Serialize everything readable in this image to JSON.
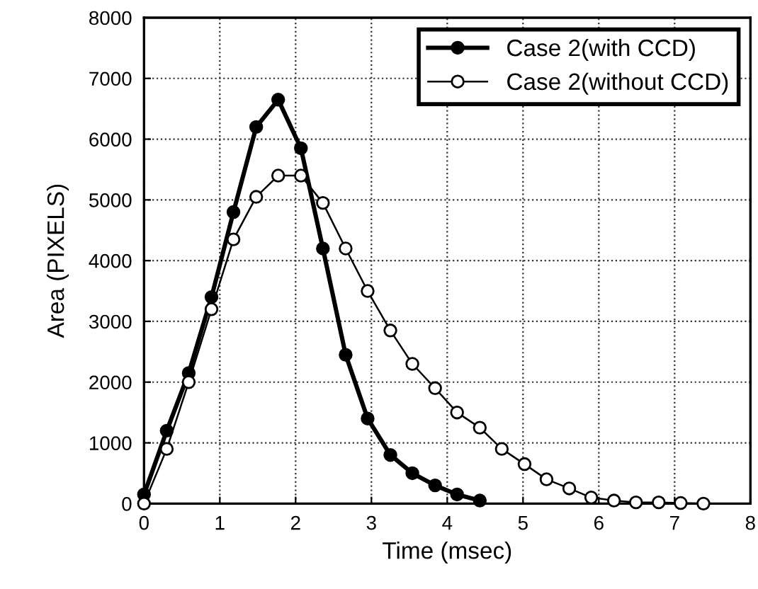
{
  "chart_data": {
    "type": "line",
    "xlabel": "Time (msec)",
    "ylabel": "Area (PIXELS)",
    "xlim": [
      0,
      8
    ],
    "ylim": [
      0,
      8000
    ],
    "xticks": [
      0,
      1,
      2,
      3,
      4,
      5,
      6,
      7,
      8
    ],
    "yticks": [
      0,
      1000,
      2000,
      3000,
      4000,
      5000,
      6000,
      7000,
      8000
    ],
    "grid": true,
    "legend": "top right",
    "marker": "circle",
    "line_style": "solid",
    "series": [
      {
        "name": "Case 2(with CCD)",
        "color": "#000000",
        "x": [
          0,
          0.3,
          0.59,
          0.89,
          1.18,
          1.48,
          1.77,
          2.07,
          2.36,
          2.66,
          2.95,
          3.25,
          3.54,
          3.84,
          4.13,
          4.43
        ],
        "values": [
          150,
          1200,
          2150,
          3400,
          4800,
          6200,
          6650,
          5850,
          4200,
          2450,
          1400,
          800,
          500,
          300,
          150,
          50
        ]
      },
      {
        "name": "Case 2(without CCD)",
        "color": "#000000",
        "x": [
          0,
          0.3,
          0.59,
          0.89,
          1.18,
          1.48,
          1.77,
          2.07,
          2.36,
          2.66,
          2.95,
          3.25,
          3.54,
          3.84,
          4.13,
          4.43,
          4.72,
          5.02,
          5.31,
          5.61,
          5.9,
          6.2,
          6.49,
          6.79,
          7.08,
          7.38
        ],
        "values": [
          0,
          900,
          2000,
          3200,
          4350,
          5050,
          5400,
          5400,
          4950,
          4200,
          3500,
          2850,
          2300,
          1900,
          1500,
          1250,
          900,
          650,
          400,
          250,
          100,
          50,
          20,
          20,
          10,
          0
        ]
      }
    ]
  }
}
